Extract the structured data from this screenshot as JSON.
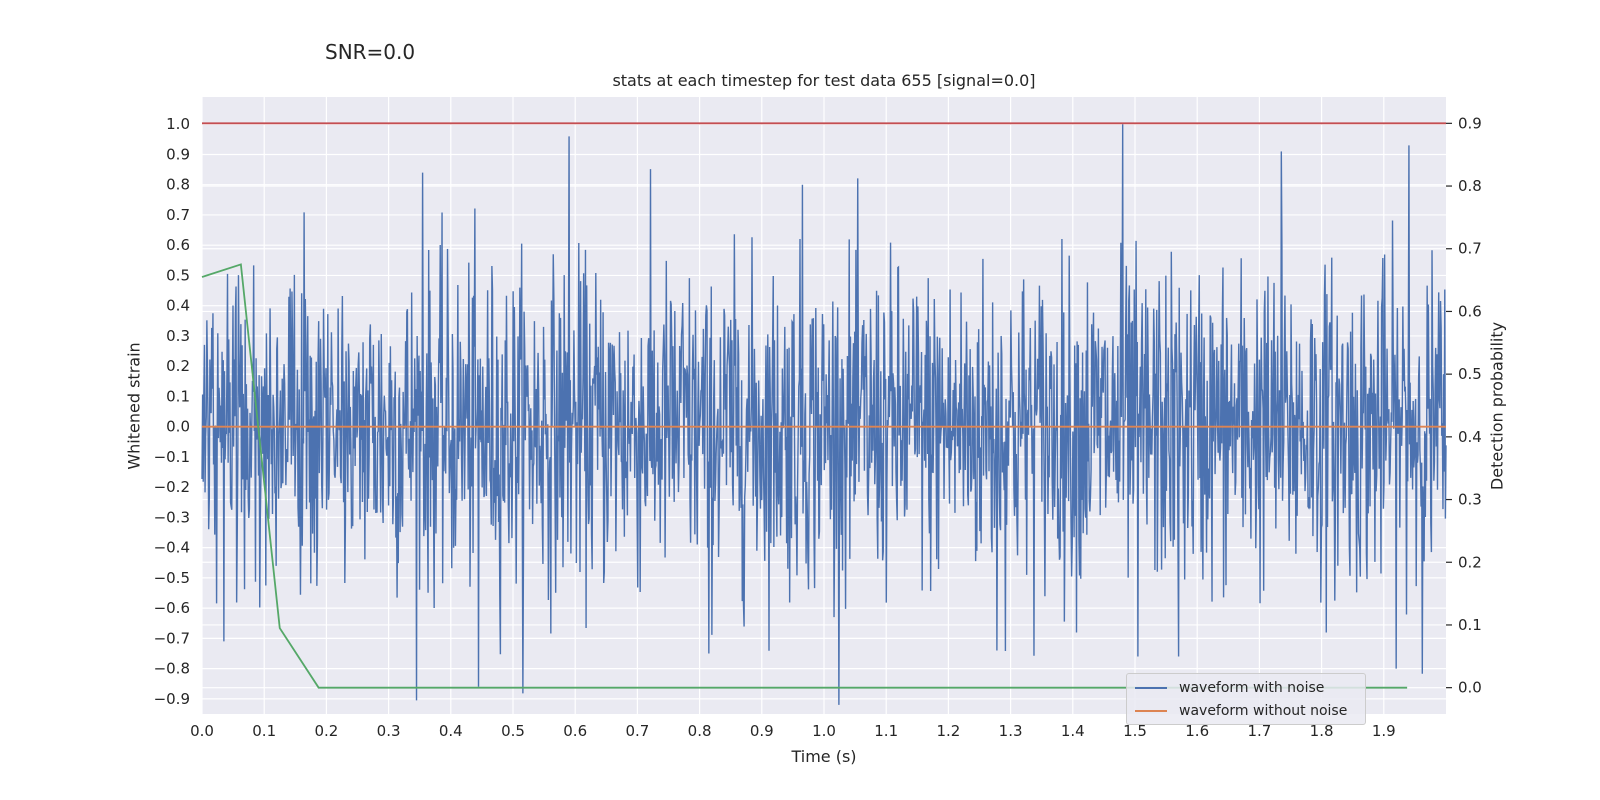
{
  "snr_label": "SNR=0.0",
  "chart_data": {
    "type": "line",
    "title": "stats at each timestep for test data 655 [signal=0.0]",
    "xlabel": "Time (s)",
    "ylabel": "Whitened strain",
    "y2label": "Detection probability",
    "xlim": [
      0.0,
      2.0
    ],
    "ylim": [
      -0.95,
      1.09
    ],
    "y2lim": [
      -0.042,
      0.942
    ],
    "xticks": [
      0.0,
      0.1,
      0.2,
      0.3,
      0.4,
      0.5,
      0.6,
      0.7,
      0.8,
      0.9,
      1.0,
      1.1,
      1.2,
      1.3,
      1.4,
      1.5,
      1.6,
      1.7,
      1.8,
      1.9
    ],
    "yticks": [
      1.0,
      0.9,
      0.8,
      0.7,
      0.6,
      0.5,
      0.4,
      0.3,
      0.2,
      0.1,
      0.0,
      -0.1,
      -0.2,
      -0.3,
      -0.4,
      -0.5,
      -0.6,
      -0.7,
      -0.8,
      -0.9
    ],
    "y2ticks": [
      0.9,
      0.8,
      0.7,
      0.6,
      0.5,
      0.4,
      0.3,
      0.2,
      0.1,
      0.0
    ],
    "grid": true,
    "legend_position": "lower-right",
    "colors": {
      "noisy": "#4c72b0",
      "clean": "#dd8452",
      "probability": "#55a868",
      "threshold": "#c44e52",
      "background": "#eaeaf2"
    },
    "series": [
      {
        "name": "waveform with noise",
        "axis": "left",
        "sampling": "noise ~ N(0, 0.26), 2048 samples over 0.0–2.0 s, clipped to [-0.92, 1.0]",
        "peaks": [
          [
            0.59,
            0.96
          ],
          [
            1.48,
            1.0
          ],
          [
            1.735,
            0.91
          ],
          [
            1.94,
            0.93
          ],
          [
            0.355,
            0.84
          ],
          [
            0.965,
            0.8
          ],
          [
            0.445,
            -0.86
          ],
          [
            1.92,
            -0.8
          ],
          [
            0.035,
            -0.71
          ],
          [
            0.815,
            -0.75
          ],
          [
            1.278,
            -0.74
          ],
          [
            1.505,
            -0.76
          ],
          [
            1.57,
            -0.76
          ]
        ]
      },
      {
        "name": "waveform without noise",
        "axis": "left",
        "x": [
          0.0,
          2.0
        ],
        "y": [
          0.0,
          0.0
        ]
      },
      {
        "axis": "right",
        "x": [
          0.0,
          0.0625,
          0.125,
          0.1875,
          1.9375
        ],
        "y": [
          0.655,
          0.675,
          0.095,
          0.0,
          0.0
        ]
      },
      {
        "axis": "right",
        "x": [
          0.0,
          2.0
        ],
        "y": [
          0.9,
          0.9
        ]
      }
    ]
  }
}
